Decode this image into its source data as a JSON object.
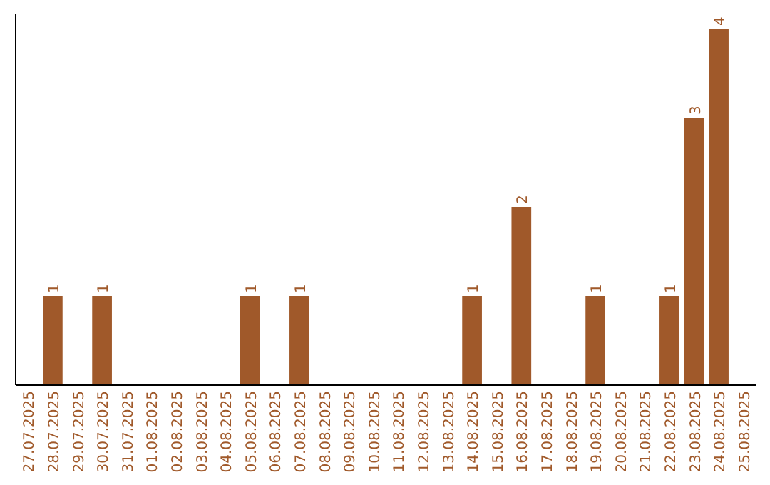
{
  "chart_data": {
    "type": "bar",
    "categories": [
      "27.07.2025",
      "28.07.2025",
      "29.07.2025",
      "30.07.2025",
      "31.07.2025",
      "01.08.2025",
      "02.08.2025",
      "03.08.2025",
      "04.08.2025",
      "05.08.2025",
      "06.08.2025",
      "07.08.2025",
      "08.08.2025",
      "09.08.2025",
      "10.08.2025",
      "11.08.2025",
      "12.08.2025",
      "13.08.2025",
      "14.08.2025",
      "15.08.2025",
      "16.08.2025",
      "17.08.2025",
      "18.08.2025",
      "19.08.2025",
      "20.08.2025",
      "21.08.2025",
      "22.08.2025",
      "23.08.2025",
      "24.08.2025",
      "25.08.2025"
    ],
    "values": [
      0,
      1,
      0,
      1,
      0,
      0,
      0,
      0,
      0,
      1,
      0,
      1,
      0,
      0,
      0,
      0,
      0,
      0,
      1,
      0,
      2,
      0,
      0,
      1,
      0,
      0,
      1,
      3,
      4,
      0
    ],
    "value_labels": [
      null,
      "1",
      null,
      "1",
      null,
      null,
      null,
      null,
      null,
      "1",
      null,
      "1",
      null,
      null,
      null,
      null,
      null,
      null,
      "1",
      null,
      "2",
      null,
      null,
      "1",
      null,
      null,
      "1",
      "3",
      "4",
      null
    ],
    "color": "#a0592a",
    "ylim": [
      0,
      4
    ],
    "tick_labels": "x"
  }
}
